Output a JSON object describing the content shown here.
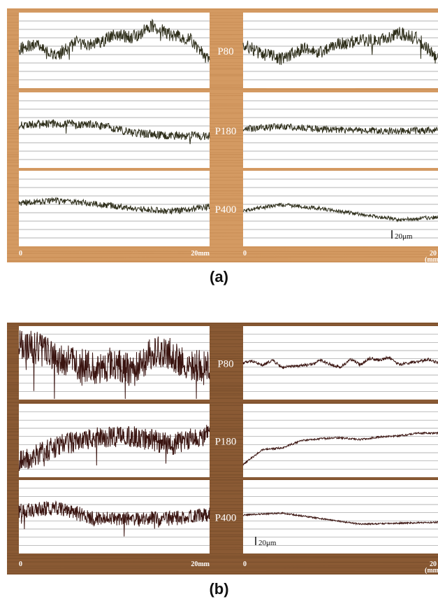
{
  "colors": {
    "wood_a": "#d49a62",
    "wood_a_dark": "#b57a42",
    "wood_b": "#8a5a34",
    "wood_b_dark": "#5e3b1e",
    "panel": "#ffffff",
    "gridline": "#9a9a9a",
    "trace_a": "#2e2e1a",
    "trace_b": "#3a1410"
  },
  "chart_data": [
    {
      "type": "line",
      "panel_label": "(a)",
      "rows": [
        "P80",
        "P180",
        "P400"
      ],
      "x_axis": {
        "left_start": "0",
        "left_end": "20mm",
        "right_start": "0",
        "right_end": "20",
        "right_unit": "(mm"
      },
      "x_range_mm": [
        0,
        20
      ],
      "scale_bar": "20μm",
      "grid": true,
      "profiles": [
        {
          "row": "P80",
          "side": "left",
          "points": [
            [
              0,
              1.0
            ],
            [
              2,
              3.5
            ],
            [
              4,
              -2.5
            ],
            [
              6,
              4.0
            ],
            [
              8,
              3.0
            ],
            [
              10,
              8.0
            ],
            [
              12,
              7.0
            ],
            [
              14,
              13.0
            ],
            [
              16,
              8.0
            ],
            [
              18,
              6.0
            ],
            [
              20,
              -6.0
            ]
          ],
          "noise": 3.5
        },
        {
          "row": "P80",
          "side": "right",
          "points": [
            [
              0,
              3.0
            ],
            [
              2,
              -2.0
            ],
            [
              4,
              -4.5
            ],
            [
              6,
              1.0
            ],
            [
              8,
              -1.0
            ],
            [
              10,
              3.5
            ],
            [
              12,
              5.0
            ],
            [
              14,
              6.0
            ],
            [
              16,
              9.0
            ],
            [
              18,
              6.0
            ],
            [
              20,
              -5.0
            ]
          ],
          "noise": 3.5
        },
        {
          "row": "P180",
          "side": "left",
          "points": [
            [
              0,
              2.5
            ],
            [
              4,
              3.5
            ],
            [
              8,
              3.0
            ],
            [
              12,
              -1.5
            ],
            [
              16,
              -3.0
            ],
            [
              20,
              -3.0
            ]
          ],
          "noise": 2.2
        },
        {
          "row": "P180",
          "side": "right",
          "points": [
            [
              0,
              0.5
            ],
            [
              4,
              2.0
            ],
            [
              8,
              0.5
            ],
            [
              12,
              0.0
            ],
            [
              16,
              -0.5
            ],
            [
              20,
              0.0
            ]
          ],
          "noise": 1.8
        },
        {
          "row": "P400",
          "side": "left",
          "points": [
            [
              0,
              3.0
            ],
            [
              4,
              4.0
            ],
            [
              8,
              2.5
            ],
            [
              12,
              0.0
            ],
            [
              16,
              -1.5
            ],
            [
              20,
              1.0
            ]
          ],
          "noise": 1.7
        },
        {
          "row": "P400",
          "side": "right",
          "points": [
            [
              0,
              -1.0
            ],
            [
              4,
              2.0
            ],
            [
              8,
              0.0
            ],
            [
              12,
              -3.0
            ],
            [
              16,
              -6.0
            ],
            [
              20,
              -4.5
            ]
          ],
          "noise": 1.0
        }
      ]
    },
    {
      "type": "line",
      "panel_label": "(b)",
      "rows": [
        "P80",
        "P180",
        "P400"
      ],
      "x_axis": {
        "left_start": "0",
        "left_end": "20mm",
        "right_start": "0",
        "right_end": "20",
        "right_unit": "(mm"
      },
      "x_range_mm": [
        0,
        20
      ],
      "scale_bar": "20μm",
      "grid": true,
      "profiles": [
        {
          "row": "P80",
          "side": "left",
          "points": [
            [
              0,
              10.0
            ],
            [
              2,
              8.0
            ],
            [
              4,
              2.0
            ],
            [
              6,
              0.0
            ],
            [
              8,
              -3.0
            ],
            [
              10,
              0.0
            ],
            [
              12,
              -5.0
            ],
            [
              14,
              6.0
            ],
            [
              16,
              5.0
            ],
            [
              18,
              -3.0
            ],
            [
              20,
              0.0
            ]
          ],
          "noise": 9.0
        },
        {
          "row": "P80",
          "side": "right",
          "points": [
            [
              0,
              0.0
            ],
            [
              1,
              1.0
            ],
            [
              2,
              -1.5
            ],
            [
              3,
              1.5
            ],
            [
              4,
              -2.5
            ],
            [
              5,
              -2.0
            ],
            [
              6,
              -1.5
            ],
            [
              7,
              -1.0
            ],
            [
              8,
              1.5
            ],
            [
              9,
              -1.0
            ],
            [
              10,
              -2.5
            ],
            [
              11,
              2.0
            ],
            [
              12,
              -1.0
            ],
            [
              13,
              2.5
            ],
            [
              14,
              1.5
            ],
            [
              15,
              3.0
            ],
            [
              16,
              -1.0
            ],
            [
              17,
              0.0
            ],
            [
              18,
              0.5
            ],
            [
              19,
              2.0
            ],
            [
              20,
              0.0
            ]
          ],
          "noise": 0.8
        },
        {
          "row": "P180",
          "side": "left",
          "points": [
            [
              0,
              -12.0
            ],
            [
              4,
              -3.0
            ],
            [
              8,
              2.0
            ],
            [
              12,
              2.0
            ],
            [
              16,
              -2.0
            ],
            [
              20,
              3.0
            ]
          ],
          "noise": 6.0
        },
        {
          "row": "P180",
          "side": "right",
          "points": [
            [
              0,
              -13.0
            ],
            [
              2,
              -5.0
            ],
            [
              4,
              -4.0
            ],
            [
              6,
              0.0
            ],
            [
              8,
              1.0
            ],
            [
              10,
              1.5
            ],
            [
              12,
              0.5
            ],
            [
              14,
              2.0
            ],
            [
              16,
              2.5
            ],
            [
              18,
              4.0
            ],
            [
              20,
              4.0
            ]
          ],
          "noise": 0.5
        },
        {
          "row": "P400",
          "side": "left",
          "points": [
            [
              0,
              3.0
            ],
            [
              4,
              5.0
            ],
            [
              8,
              -1.0
            ],
            [
              12,
              -1.0
            ],
            [
              16,
              -1.0
            ],
            [
              20,
              1.0
            ]
          ],
          "noise": 4.0
        },
        {
          "row": "P400",
          "side": "right",
          "points": [
            [
              0,
              1.0
            ],
            [
              4,
              2.0
            ],
            [
              8,
              -1.0
            ],
            [
              12,
              -4.0
            ],
            [
              16,
              -3.5
            ],
            [
              20,
              -3.0
            ]
          ],
          "noise": 0.4
        }
      ]
    }
  ]
}
